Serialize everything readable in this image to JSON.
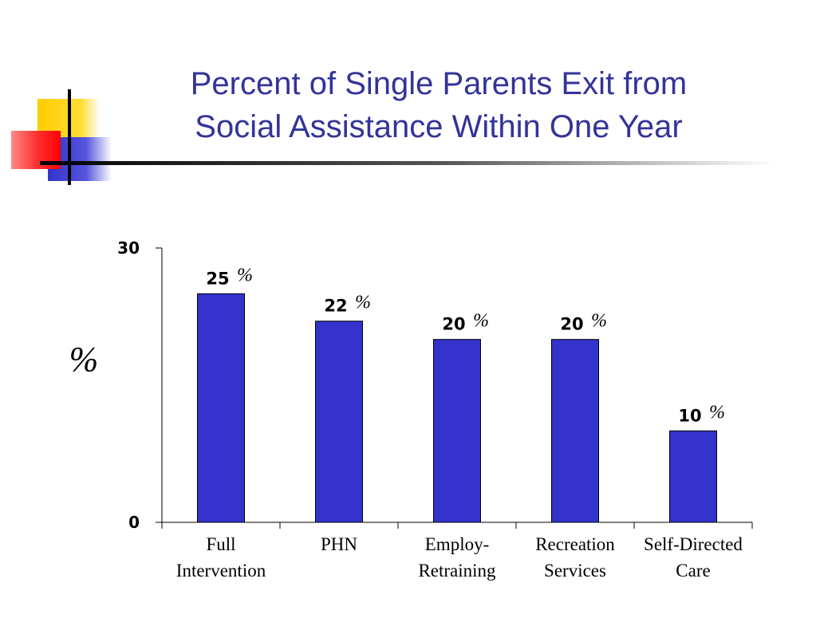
{
  "slide": {
    "title_lines": [
      "Percent of Single Parents Exit from",
      "Social Assistance Within One Year"
    ]
  },
  "chart_data": {
    "type": "bar",
    "categories": [
      [
        "Full",
        "Intervention"
      ],
      [
        "PHN"
      ],
      [
        "Employ-",
        "Retraining"
      ],
      [
        "Recreation",
        "Services"
      ],
      [
        "Self-Directed",
        "Care"
      ]
    ],
    "values": [
      25,
      22,
      20,
      20,
      10
    ],
    "value_labels": [
      "25",
      "22",
      "20",
      "20",
      "10"
    ],
    "value_suffix": "%",
    "ylabel": "%",
    "ylim": [
      0,
      30
    ],
    "yticks": [
      "0",
      "30"
    ],
    "grid": false,
    "legend": "none",
    "colors": {
      "bar": "#3333cc",
      "bar_stroke": "#000000",
      "title": "#333399"
    }
  }
}
